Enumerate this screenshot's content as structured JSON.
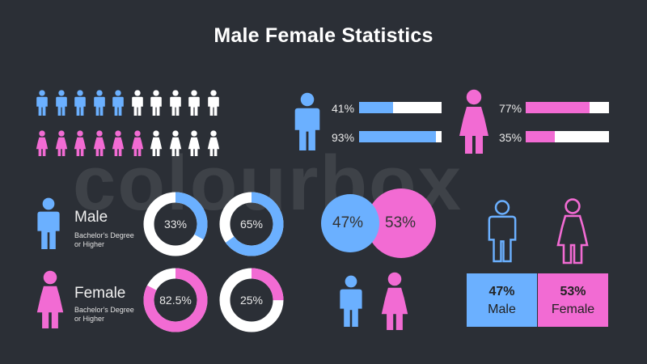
{
  "title": "Male Female Statistics",
  "watermark": "colourbox",
  "colors": {
    "male": "#6bb0ff",
    "female": "#f26bd3",
    "neutral": "#ffffff",
    "background": "#2b2f36"
  },
  "chart_data": [
    {
      "type": "pictograph",
      "series": [
        {
          "name": "male",
          "filled": 5,
          "total": 10
        },
        {
          "name": "female",
          "filled": 6,
          "total": 10
        }
      ]
    },
    {
      "type": "bar",
      "group": "male",
      "values": [
        41,
        93
      ],
      "labels": [
        "41%",
        "93%"
      ]
    },
    {
      "type": "bar",
      "group": "female",
      "values": [
        77,
        35
      ],
      "labels": [
        "77%",
        "35%"
      ]
    },
    {
      "type": "donut",
      "rows": [
        {
          "name": "Male",
          "sub": "Bachelor's Degree or Higher",
          "values": [
            33,
            65
          ],
          "labels": [
            "33%",
            "65%"
          ]
        },
        {
          "name": "Female",
          "sub": "Bachelor's Degree or Higher",
          "values": [
            82.5,
            25
          ],
          "labels": [
            "82.5%",
            "25%"
          ]
        }
      ]
    },
    {
      "type": "bubble",
      "values": [
        47,
        53
      ],
      "labels": [
        "47%",
        "53%"
      ]
    },
    {
      "type": "table",
      "cells": [
        {
          "value": "47%",
          "label": "Male"
        },
        {
          "value": "53%",
          "label": "Female"
        }
      ]
    }
  ]
}
